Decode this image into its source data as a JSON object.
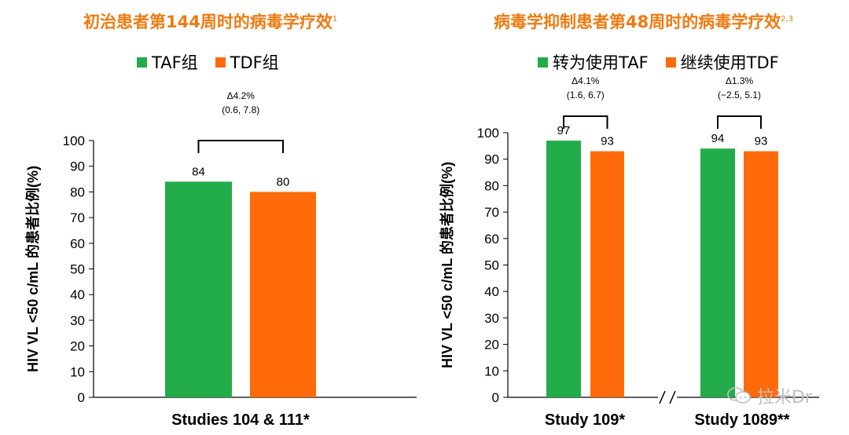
{
  "colors": {
    "taf": "#22ad4a",
    "tdf": "#ff6a0a",
    "title": "#f07a10",
    "axis": "#000000"
  },
  "left": {
    "title": "初治患者第144周时的病毒学疗效",
    "title_sup": "1",
    "legend": [
      "TAF组",
      "TDF组"
    ]
  },
  "right": {
    "title": "病毒学抑制患者第48周时的病毒学疗效",
    "title_sup": "2,3",
    "legend": [
      "转为使用TAF",
      "继续使用TDF"
    ]
  },
  "watermark": "拉米Dr",
  "chart_data": [
    {
      "type": "bar",
      "ylabel": "HIV VL <50 c/mL 的患者比例(%)",
      "ylim": [
        0,
        100
      ],
      "yticks": [
        "0",
        "10",
        "20",
        "30",
        "40",
        "50",
        "60",
        "70",
        "80",
        "90",
        "100"
      ],
      "categories": [
        "Studies 104 & 111*"
      ],
      "series": [
        {
          "name": "TAF组",
          "values": [
            84
          ]
        },
        {
          "name": "TDF组",
          "values": [
            80
          ]
        }
      ],
      "annotations": [
        {
          "category": "Studies 104 & 111*",
          "line1": "Δ4.2%",
          "line2": "(0.6, 7.8)"
        }
      ]
    },
    {
      "type": "bar",
      "ylabel": "HIV VL <50 c/mL 的患者比例(%)",
      "ylim": [
        0,
        100
      ],
      "yticks": [
        "0",
        "10",
        "20",
        "30",
        "40",
        "50",
        "60",
        "70",
        "80",
        "90",
        "100"
      ],
      "categories": [
        "Study 109*",
        "Study 1089**"
      ],
      "series": [
        {
          "name": "转为使用TAF",
          "values": [
            97,
            94
          ]
        },
        {
          "name": "继续使用TDF",
          "values": [
            93,
            93
          ]
        }
      ],
      "annotations": [
        {
          "category": "Study 109*",
          "line1": "Δ4.1%",
          "line2": "(1.6, 6.7)"
        },
        {
          "category": "Study 1089**",
          "line1": "Δ1.3%",
          "line2": "(−2.5, 5.1)"
        }
      ]
    }
  ]
}
